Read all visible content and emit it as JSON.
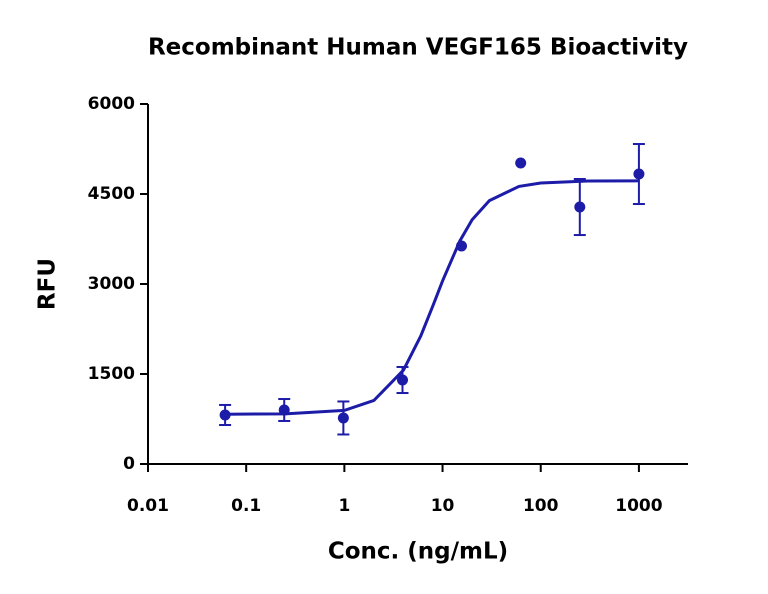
{
  "chart_data": {
    "type": "scatter",
    "title": "Recombinant Human VEGF165 Bioactivity",
    "xlabel": "Conc. (ng/mL)",
    "ylabel": "RFU",
    "xscale": "log",
    "xlim": [
      0.01,
      3162
    ],
    "xticks": [
      0.01,
      0.1,
      1,
      10,
      100,
      1000
    ],
    "ylim": [
      0,
      6000
    ],
    "yticks": [
      0,
      1500,
      3000,
      4500,
      6000
    ],
    "color": "#1c1ca8",
    "series": [
      {
        "kind": "points",
        "x": [
          0.061,
          0.244,
          0.977,
          3.91,
          15.6,
          62.5,
          250,
          1000
        ],
        "values": [
          817,
          900,
          767,
          1400,
          3633,
          5017,
          4283,
          4833
        ],
        "errors": [
          167,
          183,
          275,
          217,
          null,
          null,
          467,
          500
        ]
      },
      {
        "kind": "line",
        "x": [
          0.061,
          0.25,
          1,
          2,
          4,
          6,
          8,
          10,
          15,
          20,
          30,
          60,
          100,
          300,
          1000
        ],
        "values": [
          830,
          835,
          894,
          1059,
          1565,
          2134,
          2643,
          3051,
          3717,
          4070,
          4390,
          4626,
          4684,
          4716,
          4720
        ]
      }
    ]
  }
}
